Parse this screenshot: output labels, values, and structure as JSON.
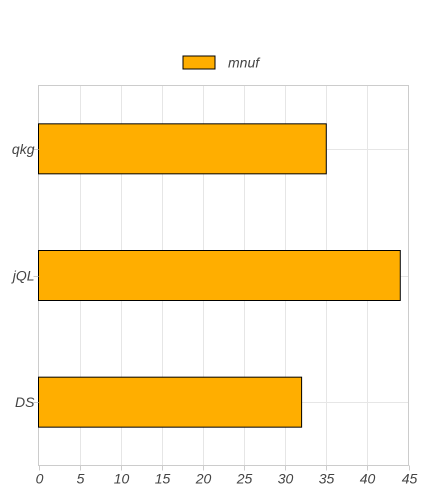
{
  "chart_data": {
    "type": "bar",
    "orientation": "horizontal",
    "categories": [
      "qkg",
      "jQL",
      "DS"
    ],
    "series": [
      {
        "name": "mnuf",
        "values": [
          35,
          44,
          32
        ]
      }
    ],
    "xlim": [
      0,
      45
    ],
    "xticks": [
      0,
      5,
      10,
      15,
      20,
      25,
      30,
      35,
      40,
      45
    ],
    "title": "",
    "xlabel": "",
    "ylabel": "",
    "grid": true,
    "legend_position": "top-center",
    "colors": {
      "bar": "#FFAE00",
      "bar_border": "#000000",
      "grid": "#e6e6e6",
      "axis": "#cccccc",
      "text": "#444444"
    }
  }
}
